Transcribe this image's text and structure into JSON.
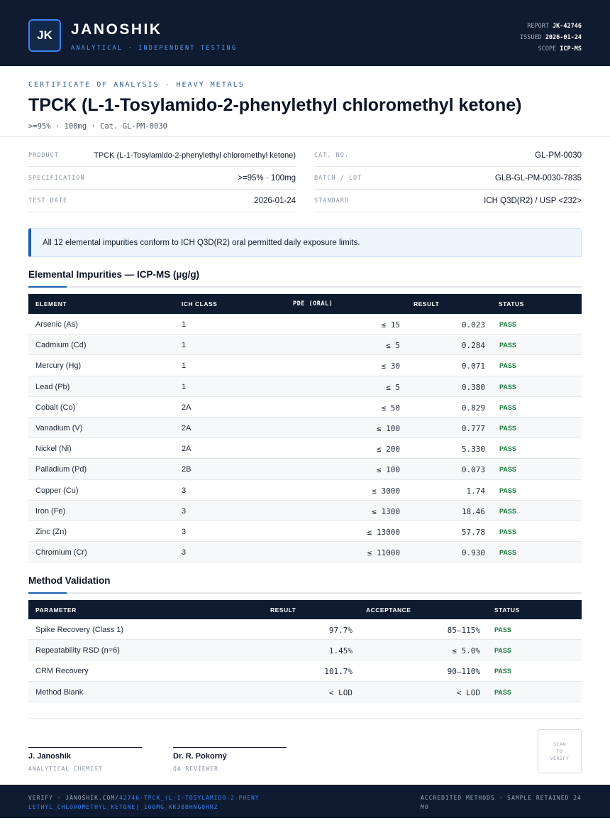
{
  "header": {
    "logo_initials": "JK",
    "brand": "JANOSHIK",
    "tagline": "ANALYTICAL · INDEPENDENT TESTING",
    "report_label": "REPORT",
    "report_value": "JK-42746",
    "issued_label": "ISSUED",
    "issued_value": "2026-01-24",
    "scope_label": "SCOPE",
    "scope_value": "ICP-MS"
  },
  "title_block": {
    "kicker": "CERTIFICATE OF ANALYSIS · HEAVY METALS",
    "title": "TPCK (L-1-Tosylamido-2-phenylethyl chloromethyl ketone)",
    "subtitle": ">=95% · 100mg  ·  Cat. GL-PM-0030"
  },
  "info": {
    "product_label": "PRODUCT",
    "product_value": "TPCK (L-1-Tosylamido-2-phenylethyl chloromethyl ketone)",
    "spec_label": "SPECIFICATION",
    "spec_value": ">=95% · 100mg",
    "date_label": "TEST DATE",
    "date_value": "2026-01-24",
    "cat_label": "CAT. NO.",
    "cat_value": "GL-PM-0030",
    "batch_label": "BATCH / LOT",
    "batch_value": "GLB-GL-PM-0030-7835",
    "standard_label": "STANDARD",
    "standard_value": "ICH Q3D(R2) / USP <232>"
  },
  "notice": "All 12 elemental impurities conform to ICH Q3D(R2) oral permitted daily exposure limits.",
  "impurities": {
    "title": "Elemental Impurities — ICP-MS (µg/g)",
    "headers": [
      "ELEMENT",
      "ICH CLASS",
      "PDE (ORAL)",
      "RESULT",
      "STATUS"
    ],
    "rows": [
      {
        "element": "Arsenic (As)",
        "class": "1",
        "pde": "≤ 15",
        "result": "0.023",
        "status": "PASS"
      },
      {
        "element": "Cadmium (Cd)",
        "class": "1",
        "pde": "≤ 5",
        "result": "0.284",
        "status": "PASS"
      },
      {
        "element": "Mercury (Hg)",
        "class": "1",
        "pde": "≤ 30",
        "result": "0.071",
        "status": "PASS"
      },
      {
        "element": "Lead (Pb)",
        "class": "1",
        "pde": "≤ 5",
        "result": "0.380",
        "status": "PASS"
      },
      {
        "element": "Cobalt (Co)",
        "class": "2A",
        "pde": "≤ 50",
        "result": "0.829",
        "status": "PASS"
      },
      {
        "element": "Vanadium (V)",
        "class": "2A",
        "pde": "≤ 100",
        "result": "0.777",
        "status": "PASS"
      },
      {
        "element": "Nickel (Ni)",
        "class": "2A",
        "pde": "≤ 200",
        "result": "5.330",
        "status": "PASS"
      },
      {
        "element": "Palladium (Pd)",
        "class": "2B",
        "pde": "≤ 100",
        "result": "0.073",
        "status": "PASS"
      },
      {
        "element": "Copper (Cu)",
        "class": "3",
        "pde": "≤ 3000",
        "result": "1.74",
        "status": "PASS"
      },
      {
        "element": "Iron (Fe)",
        "class": "3",
        "pde": "≤ 1300",
        "result": "18.46",
        "status": "PASS"
      },
      {
        "element": "Zinc (Zn)",
        "class": "3",
        "pde": "≤ 13000",
        "result": "57.78",
        "status": "PASS"
      },
      {
        "element": "Chromium (Cr)",
        "class": "3",
        "pde": "≤ 11000",
        "result": "0.930",
        "status": "PASS"
      }
    ]
  },
  "validation": {
    "title": "Method Validation",
    "headers": [
      "PARAMETER",
      "RESULT",
      "ACCEPTANCE",
      "STATUS"
    ],
    "rows": [
      {
        "parameter": "Spike Recovery (Class 1)",
        "result": "97.7%",
        "acceptance": "85–115%",
        "status": "PASS"
      },
      {
        "parameter": "Repeatability RSD (n=6)",
        "result": "1.45%",
        "acceptance": "≤ 5.0%",
        "status": "PASS"
      },
      {
        "parameter": "CRM Recovery",
        "result": "101.7%",
        "acceptance": "90–110%",
        "status": "PASS"
      },
      {
        "parameter": "Method Blank",
        "result": "< LOD",
        "acceptance": "< LOD",
        "status": "PASS"
      }
    ]
  },
  "signatures": [
    {
      "name": "J. Janoshik",
      "role": "ANALYTICAL CHEMIST"
    },
    {
      "name": "Dr. R. Pokorný",
      "role": "QA REVIEWER"
    }
  ],
  "qr": {
    "line1": "SCAN",
    "line2": "TO",
    "line3": "VERIFY"
  },
  "footer": {
    "verify_prefix": "VERIFY · JANOSHIK.COM/",
    "verify_link": "42746-TPCK_(L-1-TOSYLAMIDO-2-PHENYLETHYL_CHLOROMETHYL_KETONE)_100MG_KK38BHNGQHRZ",
    "right_text": "ACCREDITED METHODS · SAMPLE RETAINED 24 MO"
  },
  "colors": {
    "navy": "#0f1b30",
    "accent_blue": "#1f5fb0",
    "pass_green": "#18793a"
  }
}
